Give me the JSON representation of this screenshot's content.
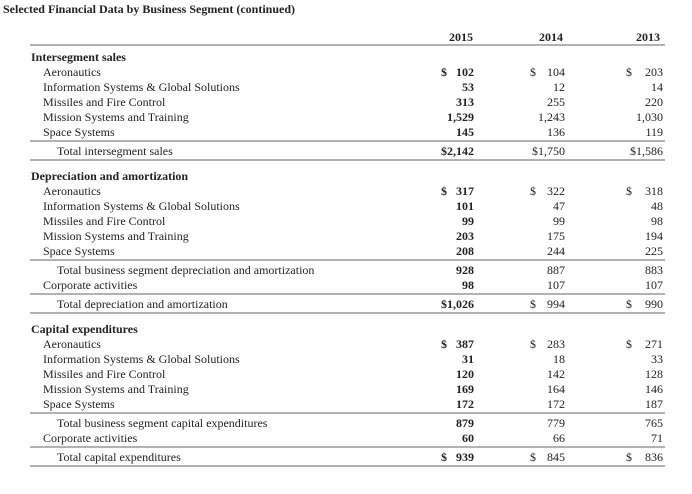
{
  "title": "Selected Financial Data by Business Segment (continued)",
  "columns": [
    "2015",
    "2014",
    "2013"
  ],
  "sections": [
    {
      "heading": "Intersegment sales",
      "rows": [
        {
          "label": "Aeronautics",
          "cells": [
            {
              "sign": "$",
              "amount": "102"
            },
            {
              "sign": "$",
              "amount": "104"
            },
            {
              "sign": "$",
              "amount": "203"
            }
          ]
        },
        {
          "label": "Information Systems & Global Solutions",
          "cells": [
            {
              "amount": "53"
            },
            {
              "amount": "12"
            },
            {
              "amount": "14"
            }
          ]
        },
        {
          "label": "Missiles and Fire Control",
          "cells": [
            {
              "amount": "313"
            },
            {
              "amount": "255"
            },
            {
              "amount": "220"
            }
          ]
        },
        {
          "label": "Mission Systems and Training",
          "cells": [
            {
              "amount": "1,529"
            },
            {
              "amount": "1,243"
            },
            {
              "amount": "1,030"
            }
          ]
        },
        {
          "label": "Space Systems",
          "cells": [
            {
              "amount": "145"
            },
            {
              "amount": "136"
            },
            {
              "amount": "119"
            }
          ]
        },
        {
          "label": "Total intersegment sales",
          "cells": [
            {
              "amount": "$2,142"
            },
            {
              "amount": "$1,750"
            },
            {
              "amount": "$1,586"
            }
          ]
        }
      ]
    },
    {
      "heading": "Depreciation and amortization",
      "rows": [
        {
          "label": "Aeronautics",
          "cells": [
            {
              "sign": "$",
              "amount": "317"
            },
            {
              "sign": "$",
              "amount": "322"
            },
            {
              "sign": "$",
              "amount": "318"
            }
          ]
        },
        {
          "label": "Information Systems & Global Solutions",
          "cells": [
            {
              "amount": "101"
            },
            {
              "amount": "47"
            },
            {
              "amount": "48"
            }
          ]
        },
        {
          "label": "Missiles and Fire Control",
          "cells": [
            {
              "amount": "99"
            },
            {
              "amount": "99"
            },
            {
              "amount": "98"
            }
          ]
        },
        {
          "label": "Mission Systems and Training",
          "cells": [
            {
              "amount": "203"
            },
            {
              "amount": "175"
            },
            {
              "amount": "194"
            }
          ]
        },
        {
          "label": "Space Systems",
          "cells": [
            {
              "amount": "208"
            },
            {
              "amount": "244"
            },
            {
              "amount": "225"
            }
          ]
        },
        {
          "label": "Total business segment depreciation and amortization",
          "cells": [
            {
              "amount": "928"
            },
            {
              "amount": "887"
            },
            {
              "amount": "883"
            }
          ]
        },
        {
          "label": "Corporate activities",
          "cells": [
            {
              "amount": "98"
            },
            {
              "amount": "107"
            },
            {
              "amount": "107"
            }
          ]
        },
        {
          "label": "Total depreciation and amortization",
          "cells": [
            {
              "amount": "$1,026"
            },
            {
              "sign": "$",
              "amount": "994"
            },
            {
              "sign": "$",
              "amount": "990"
            }
          ]
        }
      ]
    },
    {
      "heading": "Capital expenditures",
      "rows": [
        {
          "label": "Aeronautics",
          "cells": [
            {
              "sign": "$",
              "amount": "387"
            },
            {
              "sign": "$",
              "amount": "283"
            },
            {
              "sign": "$",
              "amount": "271"
            }
          ]
        },
        {
          "label": "Information Systems & Global Solutions",
          "cells": [
            {
              "amount": "31"
            },
            {
              "amount": "18"
            },
            {
              "amount": "33"
            }
          ]
        },
        {
          "label": "Missiles and Fire Control",
          "cells": [
            {
              "amount": "120"
            },
            {
              "amount": "142"
            },
            {
              "amount": "128"
            }
          ]
        },
        {
          "label": "Mission Systems and Training",
          "cells": [
            {
              "amount": "169"
            },
            {
              "amount": "164"
            },
            {
              "amount": "146"
            }
          ]
        },
        {
          "label": "Space Systems",
          "cells": [
            {
              "amount": "172"
            },
            {
              "amount": "172"
            },
            {
              "amount": "187"
            }
          ]
        },
        {
          "label": "Total business segment capital expenditures",
          "cells": [
            {
              "amount": "879"
            },
            {
              "amount": "779"
            },
            {
              "amount": "765"
            }
          ]
        },
        {
          "label": "Corporate activities",
          "cells": [
            {
              "amount": "60"
            },
            {
              "amount": "66"
            },
            {
              "amount": "71"
            }
          ]
        },
        {
          "label": "Total capital expenditures",
          "cells": [
            {
              "sign": "$",
              "amount": "939"
            },
            {
              "sign": "$",
              "amount": "845"
            },
            {
              "sign": "$",
              "amount": "836"
            }
          ]
        }
      ]
    }
  ]
}
